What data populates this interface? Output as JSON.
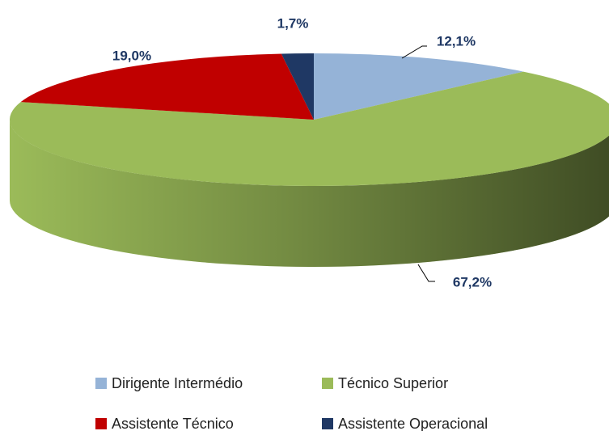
{
  "chart_data": {
    "type": "pie",
    "categories": [
      "Dirigente Intermédio",
      "Técnico Superior",
      "Assistente Técnico",
      "Assistente Operacional"
    ],
    "values": [
      12.1,
      67.2,
      19.0,
      1.7
    ],
    "value_labels": [
      "12,1%",
      "67,2%",
      "19,0%",
      "1,7%"
    ],
    "colors": [
      "#95b3d7",
      "#9bbb59",
      "#c00000",
      "#1f3864"
    ],
    "legend": "bottom"
  }
}
